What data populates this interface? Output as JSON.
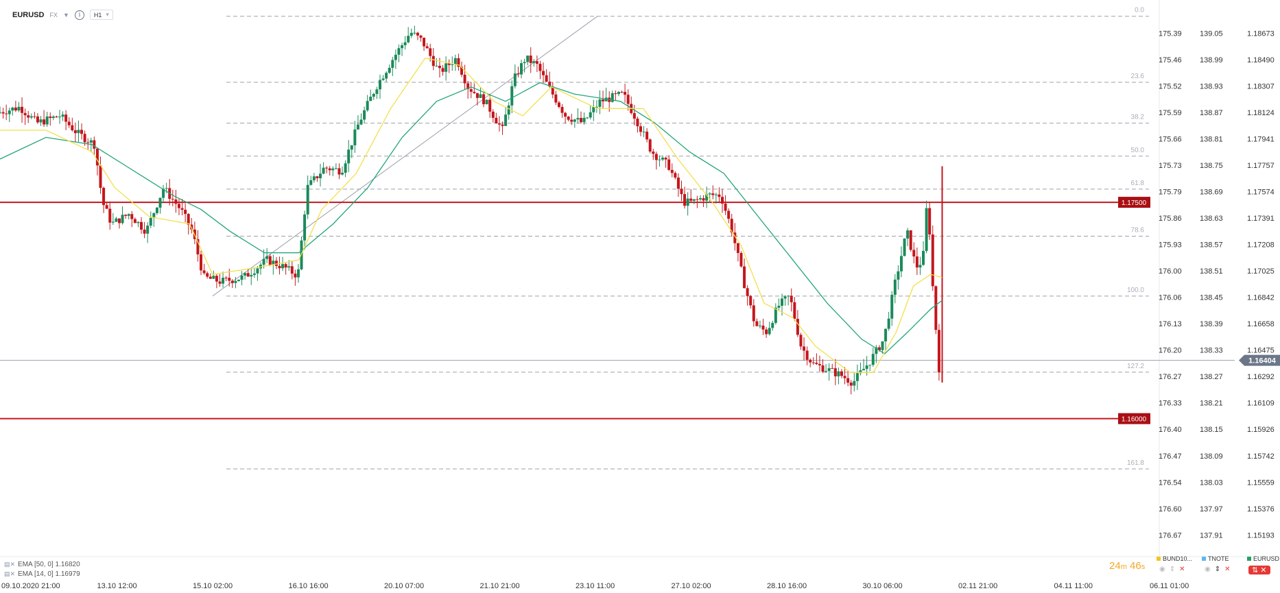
{
  "header": {
    "symbol": "EURUSD",
    "market": "FX",
    "timeframe": "H1"
  },
  "indicators": [
    {
      "label": "EMA [50, 0] 1.16820"
    },
    {
      "label": "EMA [14, 0] 1.16979"
    }
  ],
  "timer": {
    "minutes": "24",
    "m": "m",
    "seconds": "46",
    "s": "s"
  },
  "watchlist": [
    {
      "name": "BUND10...",
      "color": "#f5c518"
    },
    {
      "name": "TNOTE",
      "color": "#5bb8f0"
    },
    {
      "name": "EURUSD",
      "color": "#21a366"
    }
  ],
  "chart_data": {
    "type": "candlestick",
    "x_tick_labels": [
      "09.10.2020  21:00",
      "13.10  12:00",
      "15.10  02:00",
      "16.10  16:00",
      "20.10  07:00",
      "21.10  21:00",
      "23.10  11:00",
      "27.10  02:00",
      "28.10  16:00",
      "30.10  06:00",
      "02.11  21:00",
      "04.11  11:00",
      "06.11  01:00"
    ],
    "price_axis": {
      "ylim": [
        1.151,
        1.1876
      ],
      "labels": [
        "1.18673",
        "1.18490",
        "1.18307",
        "1.18124",
        "1.17941",
        "1.17757",
        "1.17574",
        "1.17391",
        "1.17208",
        "1.17025",
        "1.16842",
        "1.16658",
        "1.16475",
        "1.16292",
        "1.16109",
        "1.15926",
        "1.15742",
        "1.15559",
        "1.15376",
        "1.15193"
      ],
      "values": [
        1.18673,
        1.1849,
        1.18307,
        1.18124,
        1.17941,
        1.17757,
        1.17574,
        1.17391,
        1.17208,
        1.17025,
        1.16842,
        1.16658,
        1.16475,
        1.16292,
        1.16109,
        1.15926,
        1.15742,
        1.15559,
        1.15376,
        1.15193
      ],
      "current_price": "1.16404",
      "current_value": 1.16404
    },
    "aux_axis_1": [
      "175.39",
      "175.46",
      "175.52",
      "175.59",
      "175.66",
      "175.73",
      "175.79",
      "175.86",
      "175.93",
      "176.00",
      "176.06",
      "176.13",
      "176.20",
      "176.27",
      "176.33",
      "176.40",
      "176.47",
      "176.54",
      "176.60",
      "176.67"
    ],
    "aux_axis_2": [
      "139.05",
      "138.99",
      "138.93",
      "138.87",
      "138.81",
      "138.75",
      "138.69",
      "138.63",
      "138.57",
      "138.51",
      "138.45",
      "138.39",
      "138.33",
      "138.27",
      "138.21",
      "138.15",
      "138.09",
      "138.03",
      "137.97",
      "137.91"
    ],
    "fibonacci": {
      "high": 1.1879,
      "low": 1.1685,
      "levels": [
        {
          "ratio": 0.0,
          "label": "0.0"
        },
        {
          "ratio": 0.236,
          "label": "23.6"
        },
        {
          "ratio": 0.382,
          "label": "38.2"
        },
        {
          "ratio": 0.5,
          "label": "50.0"
        },
        {
          "ratio": 0.618,
          "label": "61.8"
        },
        {
          "ratio": 0.786,
          "label": "78.6"
        },
        {
          "ratio": 1.0,
          "label": "100.0"
        },
        {
          "ratio": 1.272,
          "label": "127.2"
        },
        {
          "ratio": 1.618,
          "label": "161.8"
        }
      ]
    },
    "horizontal_lines": [
      {
        "value": 1.175,
        "label": "1.17500",
        "color": "#c0161c"
      },
      {
        "value": 1.16,
        "label": "1.16000",
        "color": "#c0161c"
      }
    ],
    "trendline": {
      "from": [
        0.185,
        1.1685
      ],
      "to": [
        0.52,
        1.1879
      ]
    },
    "path_points": [
      [
        0.0,
        1.1812
      ],
      [
        0.02,
        1.1816
      ],
      [
        0.035,
        1.1805
      ],
      [
        0.055,
        1.181
      ],
      [
        0.07,
        1.1798
      ],
      [
        0.085,
        1.179
      ],
      [
        0.092,
        1.175
      ],
      [
        0.1,
        1.1735
      ],
      [
        0.115,
        1.1742
      ],
      [
        0.13,
        1.173
      ],
      [
        0.145,
        1.176
      ],
      [
        0.16,
        1.1745
      ],
      [
        0.17,
        1.173
      ],
      [
        0.18,
        1.1698
      ],
      [
        0.195,
        1.1695
      ],
      [
        0.215,
        1.1698
      ],
      [
        0.235,
        1.171
      ],
      [
        0.25,
        1.1705
      ],
      [
        0.262,
        1.1699
      ],
      [
        0.27,
        1.176
      ],
      [
        0.285,
        1.1774
      ],
      [
        0.3,
        1.1772
      ],
      [
        0.315,
        1.1805
      ],
      [
        0.33,
        1.183
      ],
      [
        0.345,
        1.185
      ],
      [
        0.36,
        1.1868
      ],
      [
        0.37,
        1.1862
      ],
      [
        0.385,
        1.184
      ],
      [
        0.4,
        1.185
      ],
      [
        0.41,
        1.183
      ],
      [
        0.425,
        1.182
      ],
      [
        0.44,
        1.18
      ],
      [
        0.45,
        1.1835
      ],
      [
        0.46,
        1.185
      ],
      [
        0.47,
        1.1845
      ],
      [
        0.48,
        1.183
      ],
      [
        0.495,
        1.181
      ],
      [
        0.51,
        1.1805
      ],
      [
        0.525,
        1.182
      ],
      [
        0.545,
        1.1825
      ],
      [
        0.555,
        1.181
      ],
      [
        0.57,
        1.1785
      ],
      [
        0.585,
        1.1775
      ],
      [
        0.598,
        1.175
      ],
      [
        0.605,
        1.175
      ],
      [
        0.62,
        1.1755
      ],
      [
        0.63,
        1.1755
      ],
      [
        0.64,
        1.173
      ],
      [
        0.65,
        1.1695
      ],
      [
        0.66,
        1.1665
      ],
      [
        0.67,
        1.166
      ],
      [
        0.68,
        1.1678
      ],
      [
        0.69,
        1.1685
      ],
      [
        0.7,
        1.165
      ],
      [
        0.71,
        1.1638
      ],
      [
        0.72,
        1.1635
      ],
      [
        0.735,
        1.163
      ],
      [
        0.745,
        1.1625
      ],
      [
        0.76,
        1.164
      ],
      [
        0.772,
        1.1655
      ],
      [
        0.782,
        1.1695
      ],
      [
        0.792,
        1.173
      ],
      [
        0.8,
        1.1705
      ],
      [
        0.806,
        1.171
      ],
      [
        0.81,
        1.1755
      ],
      [
        0.815,
        1.1685
      ],
      [
        0.82,
        1.1635
      ]
    ],
    "ema_14_points": [
      [
        0.0,
        1.18
      ],
      [
        0.04,
        1.18
      ],
      [
        0.08,
        1.1785
      ],
      [
        0.1,
        1.176
      ],
      [
        0.13,
        1.174
      ],
      [
        0.165,
        1.1735
      ],
      [
        0.185,
        1.17
      ],
      [
        0.225,
        1.1705
      ],
      [
        0.26,
        1.171
      ],
      [
        0.28,
        1.1745
      ],
      [
        0.31,
        1.177
      ],
      [
        0.34,
        1.1815
      ],
      [
        0.37,
        1.185
      ],
      [
        0.4,
        1.1845
      ],
      [
        0.43,
        1.182
      ],
      [
        0.455,
        1.181
      ],
      [
        0.48,
        1.183
      ],
      [
        0.52,
        1.1815
      ],
      [
        0.56,
        1.1815
      ],
      [
        0.59,
        1.178
      ],
      [
        0.62,
        1.175
      ],
      [
        0.645,
        1.172
      ],
      [
        0.665,
        1.168
      ],
      [
        0.69,
        1.167
      ],
      [
        0.71,
        1.165
      ],
      [
        0.74,
        1.1632
      ],
      [
        0.76,
        1.1632
      ],
      [
        0.78,
        1.166
      ],
      [
        0.795,
        1.1692
      ],
      [
        0.81,
        1.17
      ],
      [
        0.82,
        1.16979
      ]
    ],
    "ema_50_points": [
      [
        0.0,
        1.178
      ],
      [
        0.04,
        1.1795
      ],
      [
        0.08,
        1.179
      ],
      [
        0.11,
        1.1775
      ],
      [
        0.15,
        1.1755
      ],
      [
        0.175,
        1.1745
      ],
      [
        0.2,
        1.173
      ],
      [
        0.23,
        1.1715
      ],
      [
        0.26,
        1.1715
      ],
      [
        0.29,
        1.1735
      ],
      [
        0.32,
        1.176
      ],
      [
        0.35,
        1.1795
      ],
      [
        0.38,
        1.182
      ],
      [
        0.41,
        1.183
      ],
      [
        0.44,
        1.182
      ],
      [
        0.47,
        1.1833
      ],
      [
        0.5,
        1.1825
      ],
      [
        0.54,
        1.182
      ],
      [
        0.57,
        1.1805
      ],
      [
        0.6,
        1.1785
      ],
      [
        0.63,
        1.177
      ],
      [
        0.66,
        1.174
      ],
      [
        0.69,
        1.171
      ],
      [
        0.72,
        1.168
      ],
      [
        0.75,
        1.1655
      ],
      [
        0.77,
        1.1645
      ],
      [
        0.79,
        1.166
      ],
      [
        0.81,
        1.1676
      ],
      [
        0.82,
        1.1682
      ]
    ]
  }
}
